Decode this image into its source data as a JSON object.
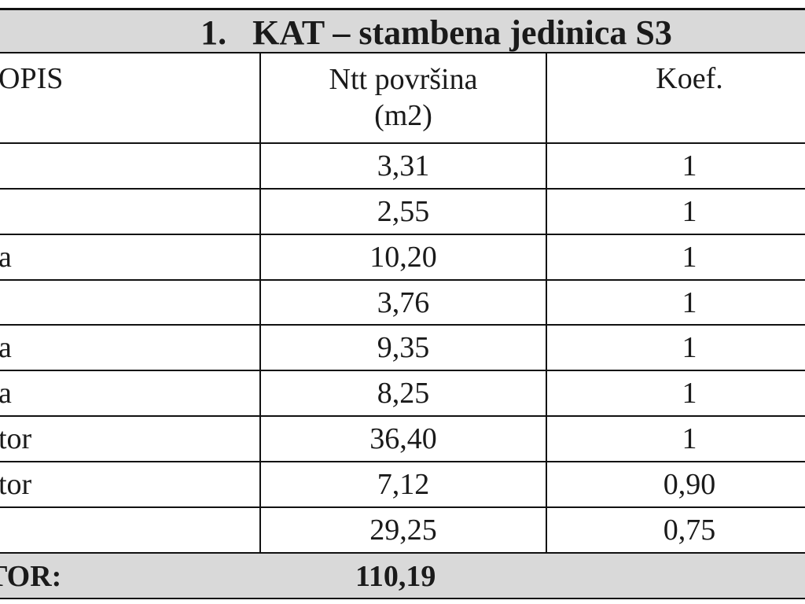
{
  "header": {
    "title": "1.   KAT – stambena jedinica S3"
  },
  "columns": {
    "description": "OPIS",
    "area_line1": "Ntt površina",
    "area_line2": "(m2)",
    "coefficient": "Koef."
  },
  "rows": [
    {
      "description": "",
      "area": "3,31",
      "coef": "1"
    },
    {
      "description": "",
      "area": "2,55",
      "coef": "1"
    },
    {
      "description": "a",
      "area": "10,20",
      "coef": "1"
    },
    {
      "description": "",
      "area": "3,76",
      "coef": "1"
    },
    {
      "description": "a",
      "area": "9,35",
      "coef": "1"
    },
    {
      "description": "a",
      "area": "8,25",
      "coef": "1"
    },
    {
      "description": "tor",
      "area": "36,40",
      "coef": "1"
    },
    {
      "description": "tor",
      "area": "7,12",
      "coef": "0,90"
    },
    {
      "description": "",
      "area": "29,25",
      "coef": "0,75"
    }
  ],
  "total": {
    "label": "TOR:",
    "value": "110,19"
  }
}
